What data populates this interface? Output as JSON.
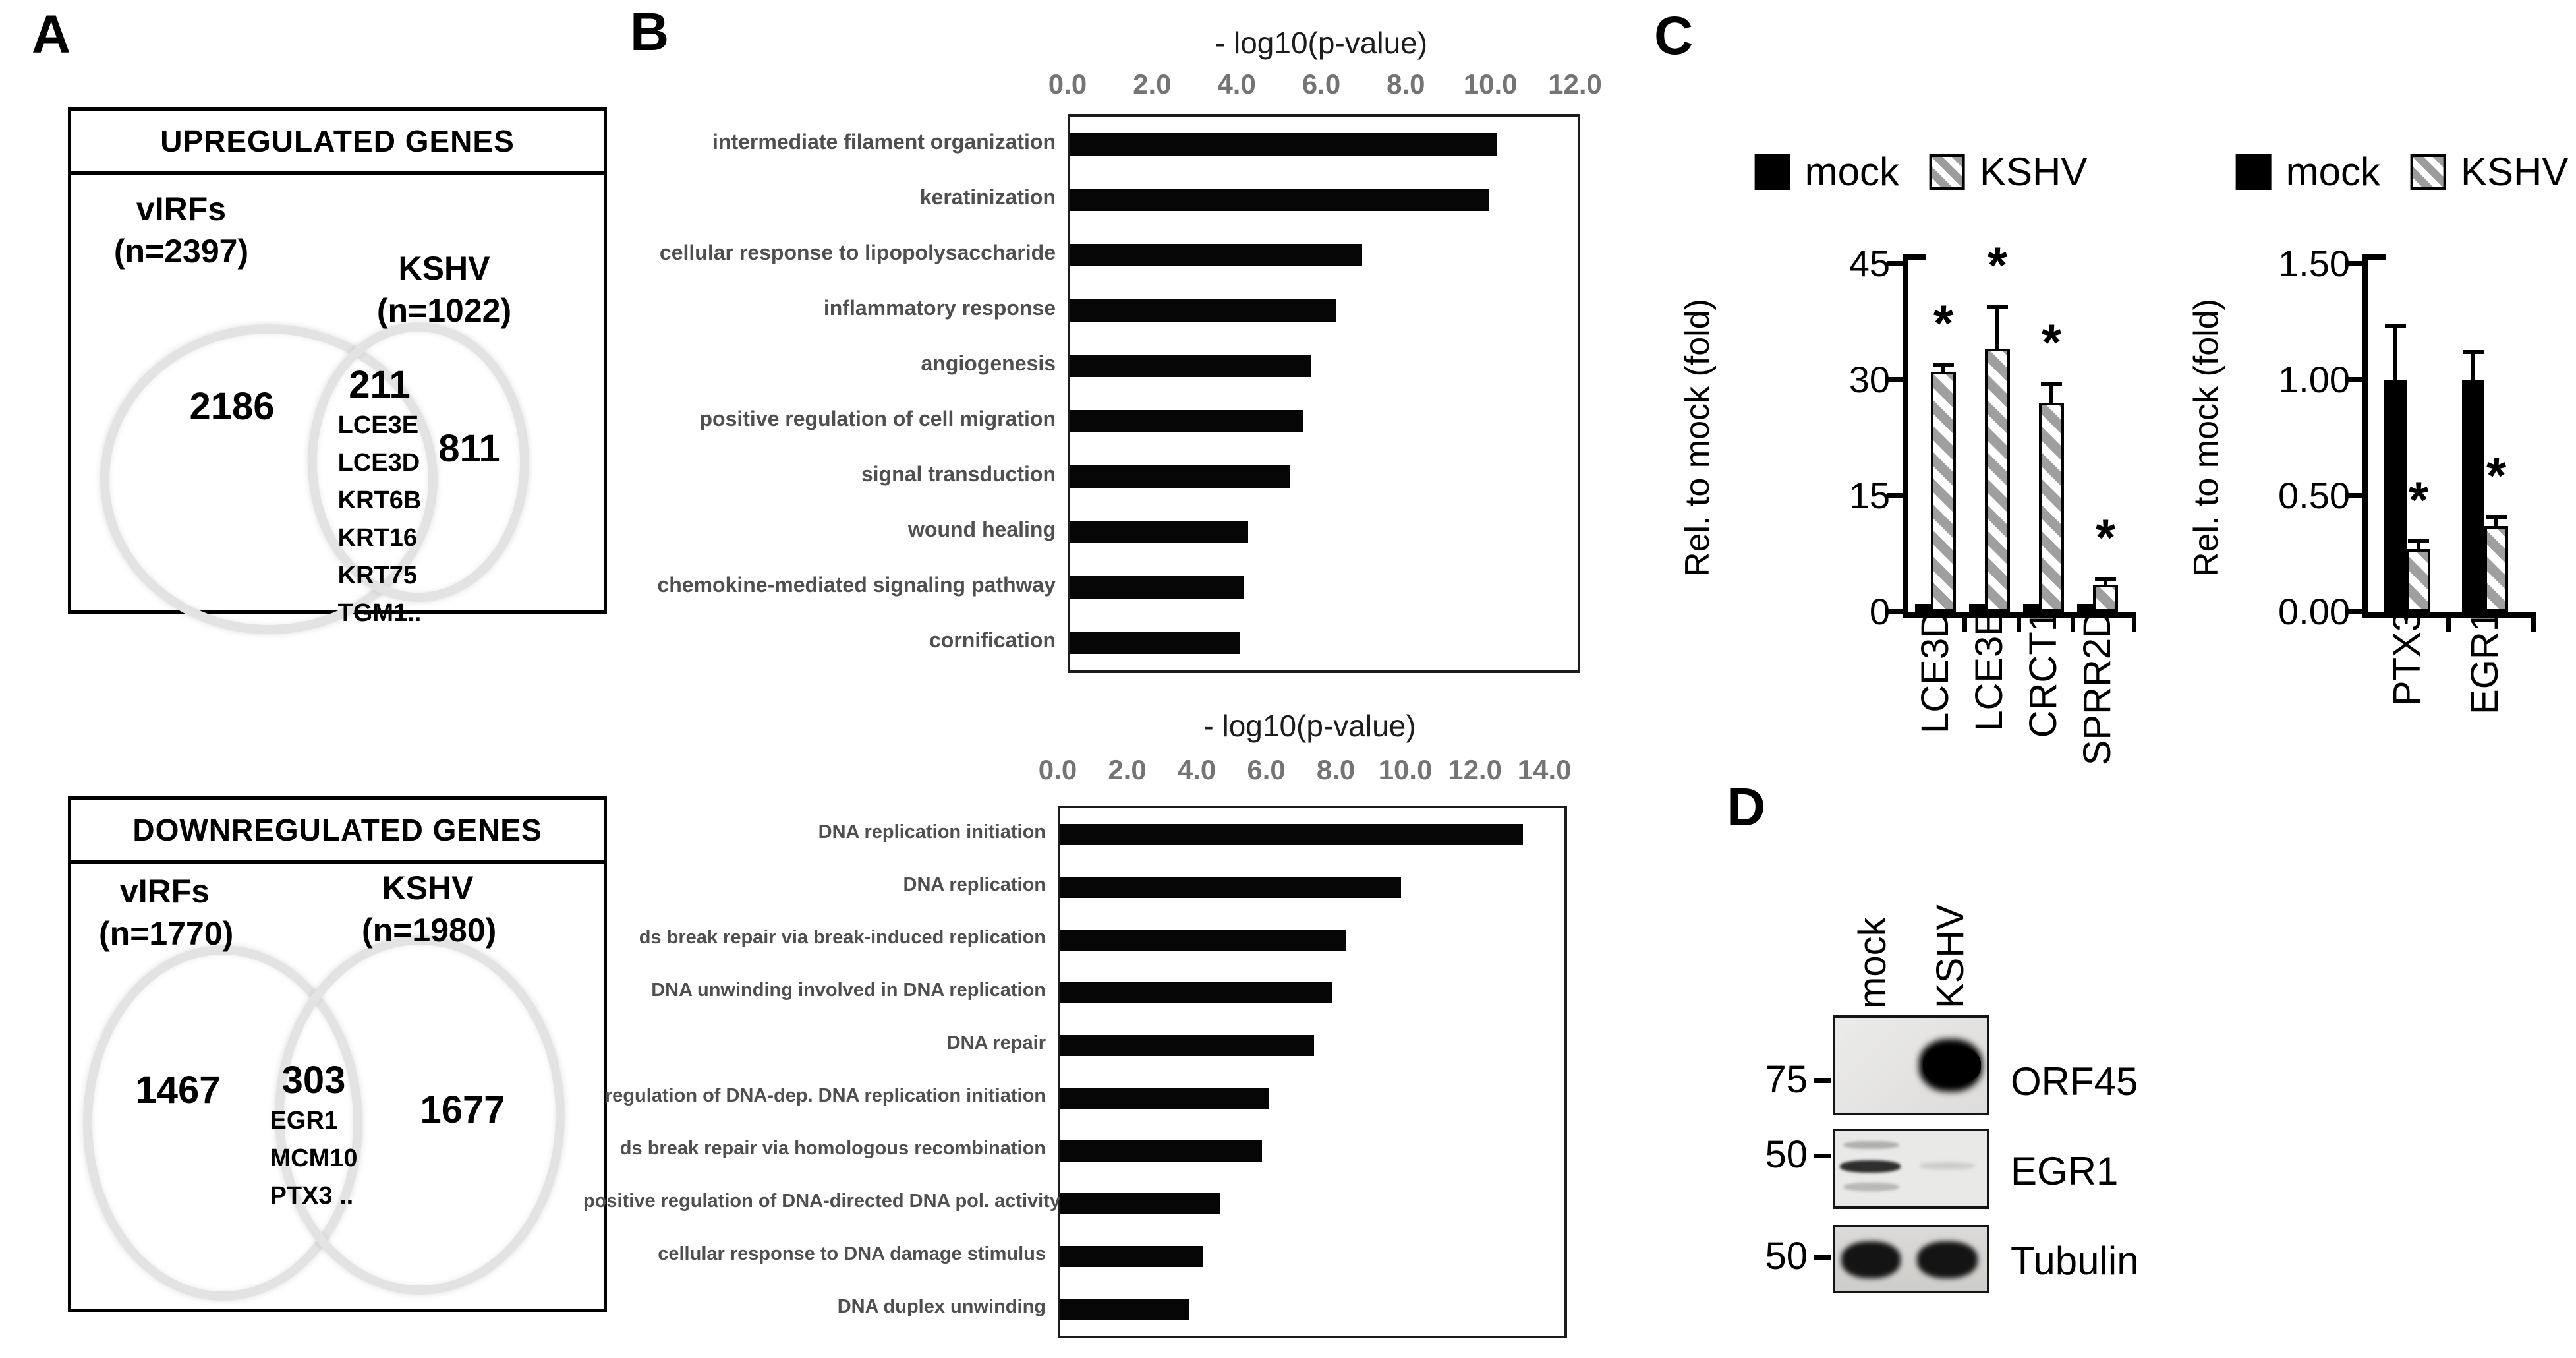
{
  "figure": {
    "letters": {
      "a": "A",
      "b": "B",
      "c": "C",
      "d": "D"
    }
  },
  "panel_a": {
    "up": {
      "title": "UPREGULATED GENES",
      "left_label": "vIRFs",
      "left_n": "(n=2397)",
      "right_label": "KSHV",
      "right_n": "(n=1022)",
      "left_count": "2186",
      "overlap_count": "211",
      "overlap_genes": [
        "LCE3E",
        "LCE3D",
        "KRT6B",
        "KRT16",
        "KRT75",
        "TGM1.."
      ],
      "right_count": "811"
    },
    "down": {
      "title": "DOWNREGULATED GENES",
      "left_label": "vIRFs",
      "left_n": "(n=1770)",
      "right_label": "KSHV",
      "right_n": "(n=1980)",
      "left_count": "1467",
      "overlap_count": "303",
      "overlap_genes": [
        "EGR1",
        "MCM10",
        "PTX3 .."
      ],
      "right_count": "1677"
    }
  },
  "chart_data": [
    {
      "id": "b_top",
      "type": "bar",
      "orientation": "horizontal",
      "title": "- log10(p-value)",
      "tick_labels": [
        "0.0",
        "2.0",
        "4.0",
        "6.0",
        "8.0",
        "10.0",
        "12.0"
      ],
      "tick_values": [
        0,
        2,
        4,
        6,
        8,
        10,
        12
      ],
      "axis_end": 12,
      "xlim": [
        0,
        12
      ],
      "bar_color": "#060606",
      "categories": [
        "intermediate filament organization",
        "keratinization",
        "cellular response to lipopolysaccharide",
        "inflammatory response",
        "angiogenesis",
        "positive regulation of cell migration",
        "signal transduction",
        "wound healing",
        "chemokine-mediated signaling pathway",
        "cornification"
      ],
      "values": [
        10.1,
        9.9,
        6.9,
        6.3,
        5.7,
        5.5,
        5.2,
        4.2,
        4.1,
        4.0
      ]
    },
    {
      "id": "b_bottom",
      "type": "bar",
      "orientation": "horizontal",
      "title": "- log10(p-value)",
      "tick_labels": [
        "0.0",
        "2.0",
        "4.0",
        "6.0",
        "8.0",
        "10.0",
        "12.0",
        "14.0"
      ],
      "tick_values": [
        0,
        2,
        4,
        6,
        8,
        10,
        12,
        14
      ],
      "axis_end": 14.5,
      "xlim": [
        0,
        14
      ],
      "bar_color": "#060606",
      "categories": [
        "DNA replication initiation",
        "DNA replication",
        "ds break repair via break-induced replication",
        "DNA unwinding involved in DNA replication",
        "DNA repair",
        "regulation of DNA-dep. DNA replication initiation",
        "ds break repair via homologous recombination",
        "positive regulation of DNA-directed DNA pol. activity",
        "cellular response to DNA damage stimulus",
        "DNA duplex unwinding"
      ],
      "values": [
        13.3,
        9.8,
        8.2,
        7.8,
        7.3,
        6.0,
        5.8,
        4.6,
        4.1,
        3.7
      ]
    },
    {
      "id": "c_left",
      "type": "grouped-bar",
      "legend": [
        "mock",
        "KSHV"
      ],
      "legend_styles": [
        "solid-black",
        "gray-hatch"
      ],
      "ylabel": "Rel. to mock (fold)",
      "ytick_labels": [
        "45",
        "30",
        "15",
        "0"
      ],
      "ylim": [
        0,
        45
      ],
      "ymax": 45,
      "categories": [
        "LCE3D",
        "LCE3E",
        "CRCT1",
        "SPRR2D"
      ],
      "series": [
        {
          "name": "mock",
          "values": [
            1,
            1,
            1,
            1
          ],
          "errors": [
            0,
            0,
            0,
            0
          ]
        },
        {
          "name": "KSHV",
          "values": [
            31,
            34,
            27,
            3.5
          ],
          "errors": [
            1,
            5.5,
            2.5,
            0.8
          ]
        }
      ],
      "significance": [
        "*",
        "*",
        "*",
        "*"
      ]
    },
    {
      "id": "c_right",
      "type": "grouped-bar",
      "legend": [
        "mock",
        "KSHV"
      ],
      "legend_styles": [
        "solid-black",
        "gray-hatch"
      ],
      "ylabel": "Rel. to mock (fold)",
      "ytick_labels": [
        "1.50",
        "1.00",
        "0.50",
        "0.00"
      ],
      "ylim": [
        0,
        1.5
      ],
      "ymax": 1.5,
      "categories": [
        "PTX3",
        "EGR1"
      ],
      "series": [
        {
          "name": "mock",
          "values": [
            1.0,
            1.0
          ],
          "errors": [
            0.23,
            0.12
          ]
        },
        {
          "name": "KSHV",
          "values": [
            0.27,
            0.37
          ],
          "errors": [
            0.035,
            0.04
          ]
        }
      ],
      "significance": [
        "*",
        "*"
      ]
    }
  ],
  "panel_d": {
    "lane_labels": [
      "mock",
      "KSHV"
    ],
    "blots": [
      {
        "mw": "75",
        "protein": "ORF45"
      },
      {
        "mw": "50",
        "protein": "EGR1"
      },
      {
        "mw": "50",
        "protein": "Tubulin"
      }
    ]
  }
}
